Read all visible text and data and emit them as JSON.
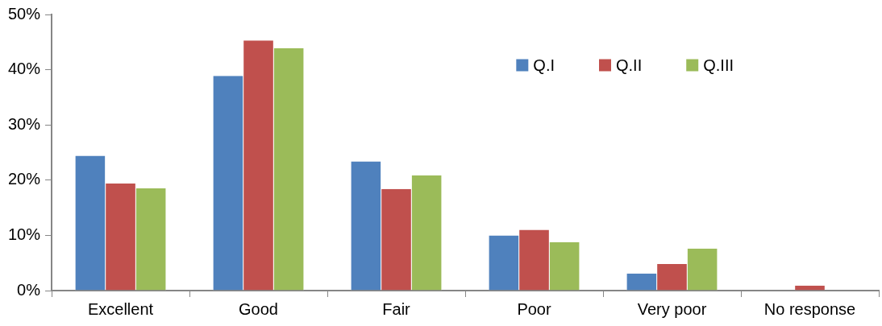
{
  "chart_data": {
    "type": "bar",
    "categories": [
      "Excellent",
      "Good",
      "Fair",
      "Poor",
      "Very poor",
      "No response"
    ],
    "series": [
      {
        "name": "Q.I",
        "color": "#4f81bd",
        "values": [
          24.4,
          38.9,
          23.4,
          10.0,
          3.1,
          0
        ]
      },
      {
        "name": "Q.II",
        "color": "#c0504d",
        "values": [
          19.4,
          45.3,
          18.4,
          11.0,
          4.8,
          0.9
        ]
      },
      {
        "name": "Q.III",
        "color": "#9bbb59",
        "values": [
          18.5,
          43.9,
          20.9,
          8.8,
          7.6,
          0
        ]
      }
    ],
    "ylim": [
      0,
      50
    ],
    "yticks": [
      {
        "value": 0,
        "label": "0%"
      },
      {
        "value": 10,
        "label": "10%"
      },
      {
        "value": 20,
        "label": "20%"
      },
      {
        "value": 30,
        "label": "30%"
      },
      {
        "value": 40,
        "label": "40%"
      },
      {
        "value": 50,
        "label": "50%"
      }
    ],
    "grid": false,
    "legend": "top right"
  }
}
